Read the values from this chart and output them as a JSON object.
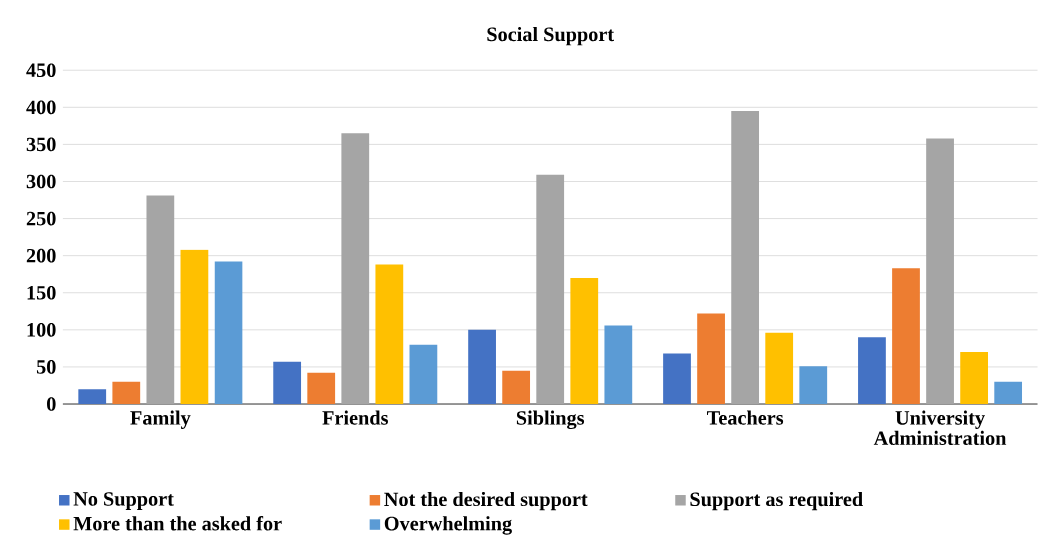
{
  "chart_data": {
    "type": "bar",
    "title": "Social Support",
    "categories": [
      "Family",
      "Friends",
      "Siblings",
      "Teachers",
      "University Administration"
    ],
    "series": [
      {
        "name": "No Support",
        "color": "#4472c4",
        "values": [
          20,
          57,
          100,
          68,
          90
        ]
      },
      {
        "name": "Not the desired support",
        "color": "#ed7d31",
        "values": [
          30,
          42,
          45,
          122,
          183
        ]
      },
      {
        "name": "Support as required",
        "color": "#a5a5a5",
        "values": [
          281,
          365,
          309,
          395,
          358
        ]
      },
      {
        "name": "More than the asked for",
        "color": "#ffc000",
        "values": [
          208,
          188,
          170,
          96,
          70
        ]
      },
      {
        "name": "Overwhelming",
        "color": "#5b9bd5",
        "values": [
          192,
          80,
          106,
          51,
          30
        ]
      }
    ],
    "ylim": [
      0,
      450
    ],
    "yticks": [
      0,
      50,
      100,
      150,
      200,
      250,
      300,
      350,
      400,
      450
    ],
    "grid": "y",
    "legend": "bottom"
  }
}
